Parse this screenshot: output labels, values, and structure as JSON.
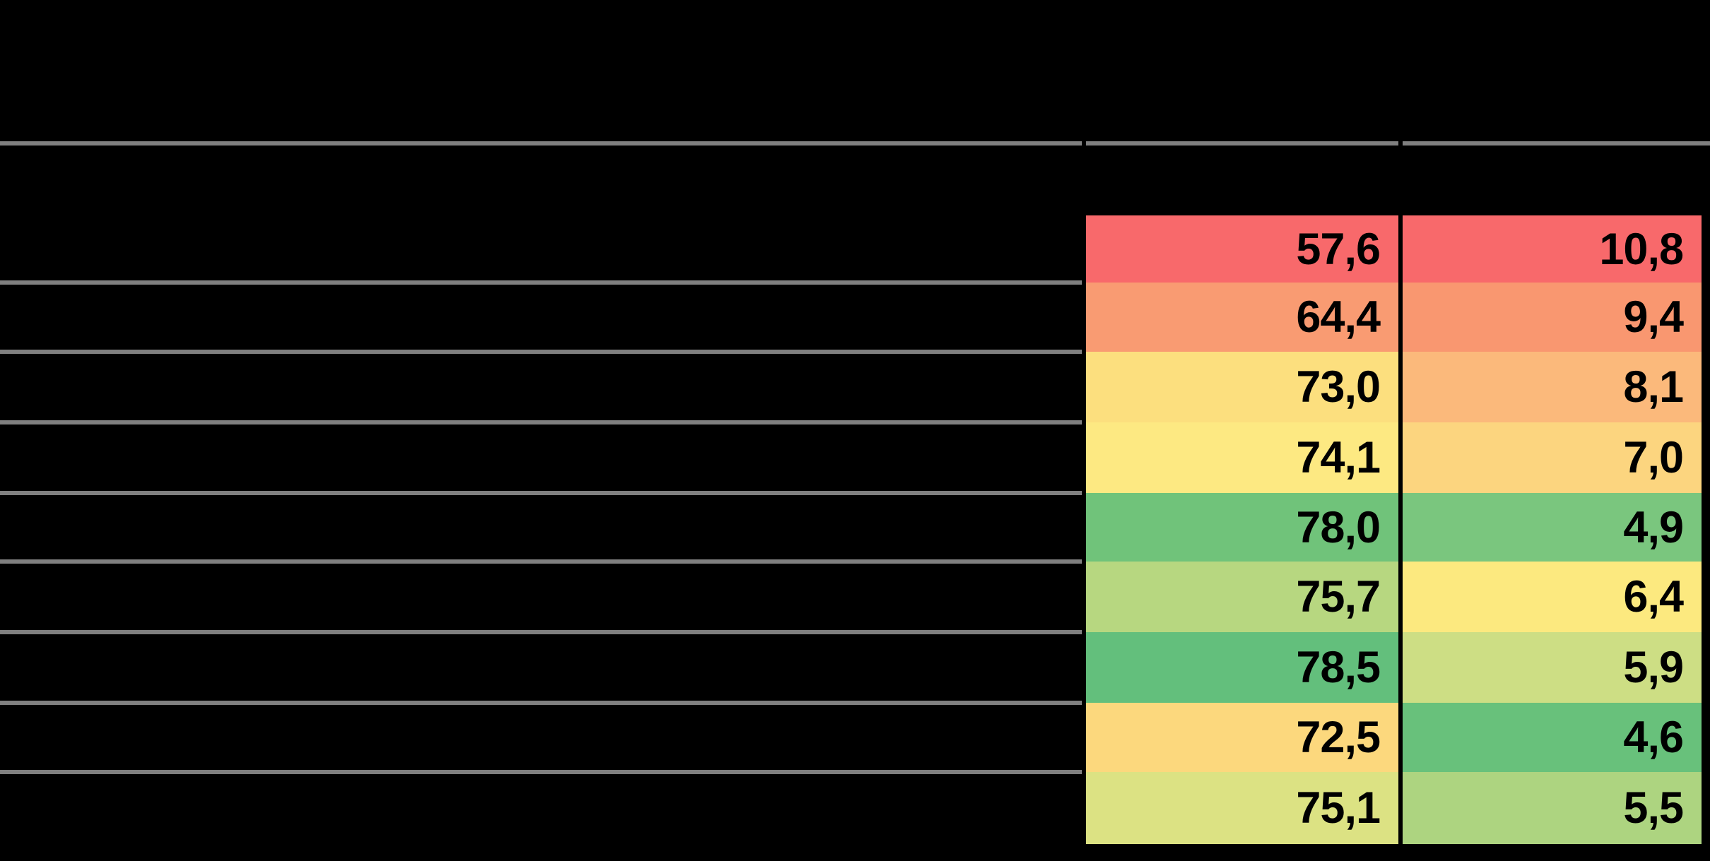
{
  "colors": {
    "background": "#000000",
    "grid_line": "#808080",
    "column_border": "#000000",
    "value_text": "#000000"
  },
  "chart_data": {
    "type": "table",
    "grid": {
      "visible_value_rows": 9,
      "visible_value_columns": 2,
      "row_label_area_text_visible": false,
      "header_text_visible": false
    },
    "rows": [
      {
        "cells": [
          {
            "value": "57,6",
            "numeric": 57.6,
            "color": "#F8696B"
          },
          {
            "value": "10,8",
            "numeric": 10.8,
            "color": "#F8696B"
          }
        ]
      },
      {
        "cells": [
          {
            "value": "64,4",
            "numeric": 64.4,
            "color": "#F99B72"
          },
          {
            "value": "9,4",
            "numeric": 9.4,
            "color": "#F99770"
          }
        ]
      },
      {
        "cells": [
          {
            "value": "73,0",
            "numeric": 73.0,
            "color": "#FCDF7E"
          },
          {
            "value": "8,1",
            "numeric": 8.1,
            "color": "#FBB97B"
          }
        ]
      },
      {
        "cells": [
          {
            "value": "74,1",
            "numeric": 74.1,
            "color": "#FDE982"
          },
          {
            "value": "7,0",
            "numeric": 7.0,
            "color": "#FCD57F"
          }
        ]
      },
      {
        "cells": [
          {
            "value": "78,0",
            "numeric": 78.0,
            "color": "#70C37A"
          },
          {
            "value": "4,9",
            "numeric": 4.9,
            "color": "#7AC67E"
          }
        ]
      },
      {
        "cells": [
          {
            "value": "75,7",
            "numeric": 75.7,
            "color": "#B7D780"
          },
          {
            "value": "6,4",
            "numeric": 6.4,
            "color": "#FCE97F"
          }
        ]
      },
      {
        "cells": [
          {
            "value": "78,5",
            "numeric": 78.5,
            "color": "#63BF7C"
          },
          {
            "value": "5,9",
            "numeric": 5.9,
            "color": "#CDDE84"
          }
        ]
      },
      {
        "cells": [
          {
            "value": "72,5",
            "numeric": 72.5,
            "color": "#FCD87D"
          },
          {
            "value": "4,6",
            "numeric": 4.6,
            "color": "#68C17B"
          }
        ]
      },
      {
        "cells": [
          {
            "value": "75,1",
            "numeric": 75.1,
            "color": "#DCE283"
          },
          {
            "value": "5,5",
            "numeric": 5.5,
            "color": "#ADD480"
          }
        ]
      }
    ]
  }
}
